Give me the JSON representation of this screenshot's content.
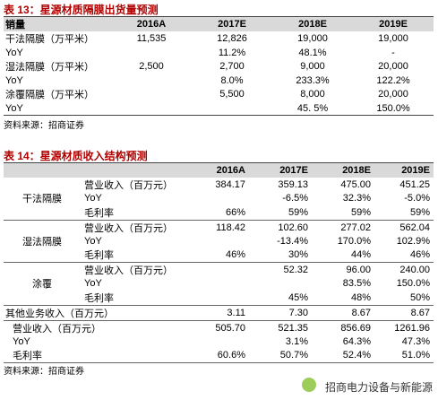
{
  "table13": {
    "title": "表 13：星源材质隔膜出货量预测",
    "header": [
      "销量",
      "2016A",
      "2017E",
      "2018E",
      "2019E"
    ],
    "rows": [
      [
        "干法隔膜（万平米）",
        "11,535",
        "12,826",
        "19,000",
        "19,000"
      ],
      [
        "YoY",
        null,
        "11.2%",
        "48.1%",
        "-"
      ],
      [
        "湿法隔膜（万平米）",
        "2,500",
        "2,700",
        "9,000",
        "20,000"
      ],
      [
        "YoY",
        null,
        "8.0%",
        "233.3%",
        "122.2%"
      ],
      [
        "涂覆隔膜（万平米）",
        null,
        "5,500",
        "8,000",
        "20,000"
      ],
      [
        "YoY",
        null,
        null,
        "45. 5%",
        "150.0%"
      ]
    ],
    "source": "资料来源：招商证券"
  },
  "table14": {
    "title": "表 14：星源材质收入结构预测",
    "header": [
      "2016A",
      "2017E",
      "2018E",
      "2019E"
    ],
    "groups": [
      {
        "label": "干法隔膜",
        "rows": [
          [
            "营业收入（百万元）",
            "384.17",
            "359.13",
            "475.00",
            "451.25"
          ],
          [
            "YoY",
            null,
            "-6.5%",
            "32.3%",
            "-5.0%"
          ],
          [
            "毛利率",
            "66%",
            "59%",
            "59%",
            "59%"
          ]
        ]
      },
      {
        "label": "湿法隔膜",
        "rows": [
          [
            "营业收入（百万元）",
            "118.42",
            "102.60",
            "277.02",
            "562.04"
          ],
          [
            "YoY",
            null,
            "-13.4%",
            "170.0%",
            "102.9%"
          ],
          [
            "毛利率",
            "46%",
            "30%",
            "44%",
            "46%"
          ]
        ]
      },
      {
        "label": "涂覆",
        "rows": [
          [
            "营业收入（百万元）",
            null,
            "52.32",
            "96.00",
            "240.00"
          ],
          [
            "YoY",
            null,
            null,
            "83.5%",
            "150.0%"
          ],
          [
            "毛利率",
            null,
            "45%",
            "48%",
            "50%"
          ]
        ]
      }
    ],
    "rows": [
      [
        "其他业务收入（百万元）",
        "3.11",
        "7.30",
        "8.67",
        "8.67"
      ],
      [
        "营业收入（百万元）",
        "505.70",
        "521.35",
        "856.69",
        "1261.96"
      ],
      [
        "YoY",
        null,
        "3.1%",
        "64.3%",
        "47.3%"
      ],
      [
        "毛利率",
        "60.6%",
        "50.7%",
        "52.4%",
        "51.0%"
      ]
    ],
    "source": "资料来源：招商证券"
  },
  "watermark": "招商电力设备与新能源"
}
